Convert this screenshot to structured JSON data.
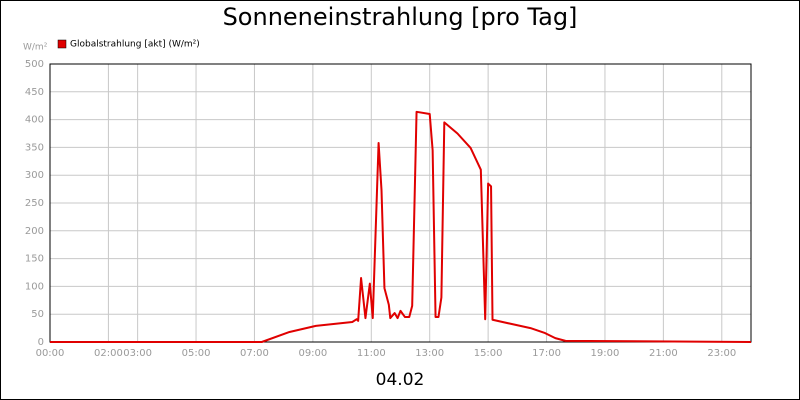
{
  "chart_data": {
    "type": "line",
    "title": "Sonneneinstrahlung [pro Tag]",
    "ylabel": "W/m²",
    "xlabel": "04.02",
    "legend": "top-left",
    "grid": true,
    "xlim": [
      0,
      24
    ],
    "ylim": [
      0,
      500
    ],
    "yticks": [
      0,
      50,
      100,
      150,
      200,
      250,
      300,
      350,
      400,
      450,
      500
    ],
    "xticks": [
      {
        "value": 0,
        "label": "00:00"
      },
      {
        "value": 2,
        "label": "02:00"
      },
      {
        "value": 3,
        "label": "03:00"
      },
      {
        "value": 5,
        "label": "05:00"
      },
      {
        "value": 7,
        "label": "07:00"
      },
      {
        "value": 9,
        "label": "09:00"
      },
      {
        "value": 11,
        "label": "11:00"
      },
      {
        "value": 13,
        "label": "13:00"
      },
      {
        "value": 15,
        "label": "15:00"
      },
      {
        "value": 17,
        "label": "17:00"
      },
      {
        "value": 19,
        "label": "19:00"
      },
      {
        "value": 21,
        "label": "21:00"
      },
      {
        "value": 23,
        "label": "23:00"
      }
    ],
    "x": [
      0,
      7.25,
      8.2,
      9.1,
      10.35,
      10.5,
      10.55,
      10.65,
      10.8,
      10.95,
      11.05,
      11.25,
      11.35,
      11.45,
      11.6,
      11.65,
      11.8,
      11.9,
      12.0,
      12.15,
      12.3,
      12.4,
      12.55,
      13.0,
      13.1,
      13.2,
      13.3,
      13.4,
      13.5,
      13.95,
      14.4,
      14.75,
      14.9,
      15.0,
      15.1,
      15.15,
      15.75,
      16.45,
      16.95,
      17.3,
      17.65,
      24
    ],
    "series": [
      {
        "name": "Globalstrahlung [akt] (W/m²)",
        "color": "#e00000",
        "values": [
          0,
          0,
          18,
          29,
          36,
          41,
          38,
          115,
          43,
          105,
          43,
          358,
          273,
          97,
          67,
          43,
          52,
          43,
          56,
          45,
          45,
          65,
          414,
          410,
          345,
          45,
          45,
          80,
          395,
          375,
          349,
          310,
          41,
          285,
          280,
          40,
          33,
          25,
          16,
          7,
          2,
          0
        ]
      }
    ]
  }
}
